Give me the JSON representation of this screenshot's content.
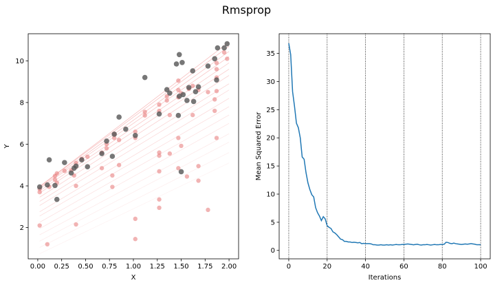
{
  "figure": {
    "title": "Rmsprop"
  },
  "chart_data": [
    {
      "type": "scatter",
      "xlabel": "X",
      "ylabel": "Y",
      "xlim": [
        -0.1,
        2.1
      ],
      "ylim": [
        0.5,
        11.3
      ],
      "xticks": [
        "0.00",
        "0.25",
        "0.50",
        "0.75",
        "1.00",
        "1.25",
        "1.50",
        "1.75",
        "2.00"
      ],
      "yticks": [
        "2",
        "4",
        "6",
        "8",
        "10"
      ],
      "grid": false,
      "colors": {
        "data_points": "#555555",
        "fit_lines": "#f08080",
        "trajectory_points": "#e88080"
      },
      "series": [
        {
          "points": [
            [
              0.02,
              3.95
            ],
            [
              0.1,
              4.05
            ],
            [
              0.12,
              5.25
            ],
            [
              0.18,
              4.02
            ],
            [
              0.2,
              3.35
            ],
            [
              0.28,
              5.12
            ],
            [
              0.35,
              4.62
            ],
            [
              0.38,
              4.85
            ],
            [
              0.4,
              4.95
            ],
            [
              0.46,
              5.25
            ],
            [
              0.52,
              4.92
            ],
            [
              0.67,
              5.55
            ],
            [
              0.72,
              6.15
            ],
            [
              0.78,
              5.42
            ],
            [
              0.8,
              6.48
            ],
            [
              0.85,
              7.3
            ],
            [
              0.92,
              6.72
            ],
            [
              1.02,
              6.42
            ],
            [
              1.12,
              9.2
            ],
            [
              1.27,
              7.45
            ],
            [
              1.35,
              8.62
            ],
            [
              1.38,
              8.45
            ],
            [
              1.45,
              9.85
            ],
            [
              1.47,
              7.38
            ],
            [
              1.48,
              10.3
            ],
            [
              1.48,
              8.3
            ],
            [
              1.5,
              4.68
            ],
            [
              1.51,
              9.92
            ],
            [
              1.52,
              8.38
            ],
            [
              1.56,
              8.1
            ],
            [
              1.58,
              8.72
            ],
            [
              1.62,
              9.52
            ],
            [
              1.63,
              8.05
            ],
            [
              1.65,
              8.52
            ],
            [
              1.68,
              8.75
            ],
            [
              1.78,
              9.75
            ],
            [
              1.85,
              10.1
            ],
            [
              1.87,
              9.08
            ],
            [
              1.88,
              10.62
            ],
            [
              1.95,
              10.62
            ],
            [
              1.98,
              10.82
            ]
          ]
        },
        {
          "points": [
            [
              0.02,
              2.1
            ],
            [
              0.02,
              3.7
            ],
            [
              0.02,
              3.85
            ],
            [
              0.1,
              1.2
            ],
            [
              0.12,
              3.95
            ],
            [
              0.18,
              4.3
            ],
            [
              0.18,
              4.48
            ],
            [
              0.2,
              4.15
            ],
            [
              0.2,
              4.6
            ],
            [
              0.28,
              4.72
            ],
            [
              0.35,
              4.75
            ],
            [
              0.38,
              4.5
            ],
            [
              0.4,
              2.15
            ],
            [
              0.4,
              4.0
            ],
            [
              0.4,
              5.1
            ],
            [
              0.46,
              5.3
            ],
            [
              0.52,
              5.4
            ],
            [
              0.67,
              4.85
            ],
            [
              0.67,
              5.6
            ],
            [
              0.72,
              5.8
            ],
            [
              0.72,
              6.0
            ],
            [
              0.78,
              3.95
            ],
            [
              0.78,
              4.5
            ],
            [
              0.8,
              6.3
            ],
            [
              0.8,
              6.5
            ],
            [
              0.85,
              5.0
            ],
            [
              0.85,
              6.2
            ],
            [
              1.02,
              1.45
            ],
            [
              1.02,
              2.42
            ],
            [
              1.02,
              6.3
            ],
            [
              1.02,
              6.6
            ],
            [
              1.12,
              7.38
            ],
            [
              1.12,
              7.55
            ],
            [
              1.27,
              2.95
            ],
            [
              1.27,
              3.35
            ],
            [
              1.27,
              4.7
            ],
            [
              1.27,
              5.45
            ],
            [
              1.27,
              5.6
            ],
            [
              1.27,
              7.6
            ],
            [
              1.27,
              7.9
            ],
            [
              1.35,
              8.1
            ],
            [
              1.35,
              8.3
            ],
            [
              1.38,
              5.55
            ],
            [
              1.38,
              7.4
            ],
            [
              1.47,
              4.85
            ],
            [
              1.47,
              6.3
            ],
            [
              1.47,
              8.25
            ],
            [
              1.47,
              8.6
            ],
            [
              1.47,
              9.05
            ],
            [
              1.5,
              5.92
            ],
            [
              1.5,
              8.45
            ],
            [
              1.56,
              4.45
            ],
            [
              1.58,
              8.65
            ],
            [
              1.62,
              7.4
            ],
            [
              1.62,
              8.8
            ],
            [
              1.68,
              4.25
            ],
            [
              1.68,
              4.95
            ],
            [
              1.68,
              8.6
            ],
            [
              1.78,
              2.85
            ],
            [
              1.78,
              8.5
            ],
            [
              1.85,
              7.6
            ],
            [
              1.85,
              8.15
            ],
            [
              1.87,
              6.3
            ],
            [
              1.87,
              8.55
            ],
            [
              1.87,
              9.2
            ],
            [
              1.87,
              9.6
            ],
            [
              1.87,
              9.9
            ],
            [
              1.95,
              10.4
            ],
            [
              1.98,
              10.1
            ]
          ]
        }
      ],
      "fit_lines": [
        [
          3.9,
          3.5
        ],
        [
          3.9,
          3.4
        ],
        [
          3.85,
          3.3
        ],
        [
          3.8,
          3.2
        ],
        [
          3.7,
          3.1
        ],
        [
          3.6,
          3.0
        ],
        [
          3.4,
          2.95
        ],
        [
          3.2,
          2.85
        ],
        [
          3.0,
          2.8
        ],
        [
          2.7,
          2.75
        ],
        [
          2.5,
          2.65
        ],
        [
          2.2,
          2.6
        ],
        [
          1.9,
          2.55
        ],
        [
          1.6,
          2.45
        ],
        [
          1.3,
          2.4
        ],
        [
          1.0,
          2.3
        ],
        [
          0.7,
          2.2
        ]
      ]
    },
    {
      "type": "line",
      "xlabel": "Iterations",
      "ylabel": "Mean Squared Error",
      "xlim": [
        -5,
        105
      ],
      "ylim": [
        -1.5,
        38.5
      ],
      "xticks": [
        "0",
        "20",
        "40",
        "60",
        "80",
        "100"
      ],
      "yticks": [
        "0",
        "5",
        "10",
        "15",
        "20",
        "25",
        "30",
        "35"
      ],
      "vlines": [
        0,
        20,
        40,
        60,
        80,
        100
      ],
      "colors": {
        "line": "#1f77b4",
        "vlines": "#000000"
      },
      "series": [
        {
          "values": [
            36.8,
            34.8,
            28.2,
            25.6,
            22.6,
            21.8,
            20.0,
            16.6,
            16.2,
            13.8,
            12.0,
            10.8,
            9.9,
            9.5,
            7.6,
            6.7,
            6.1,
            5.3,
            6.0,
            5.6,
            4.4,
            4.1,
            3.9,
            3.3,
            3.1,
            2.8,
            2.4,
            2.0,
            1.9,
            1.6,
            1.6,
            1.5,
            1.5,
            1.4,
            1.45,
            1.4,
            1.35,
            1.4,
            1.2,
            1.25,
            1.2,
            1.2,
            1.2,
            1.15,
            1.0,
            1.0,
            0.95,
            0.95,
            1.0,
            0.95,
            0.95,
            1.0,
            0.95,
            1.0,
            0.95,
            1.0,
            1.05,
            1.0,
            1.0,
            1.05,
            1.05,
            1.1,
            1.15,
            1.1,
            1.05,
            1.0,
            1.05,
            1.1,
            1.0,
            0.95,
            1.0,
            1.0,
            1.05,
            1.0,
            0.95,
            1.0,
            1.05,
            1.0,
            1.0,
            1.05,
            1.05,
            1.1,
            1.45,
            1.4,
            1.25,
            1.2,
            1.3,
            1.2,
            1.15,
            1.1,
            1.05,
            1.1,
            1.15,
            1.1,
            1.15,
            1.2,
            1.15,
            1.1,
            1.0,
            1.0,
            1.0
          ]
        }
      ]
    }
  ]
}
